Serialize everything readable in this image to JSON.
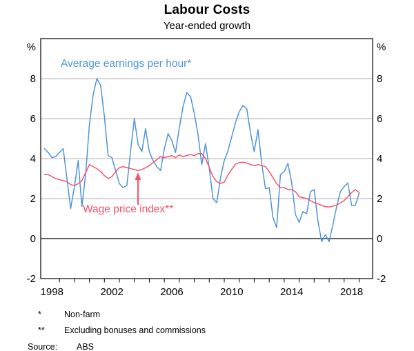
{
  "header": {
    "title": "Labour Costs",
    "subtitle": "Year-ended growth"
  },
  "annotations": {
    "blue_label": "Average earnings per hour*",
    "red_label": "Wage price index**"
  },
  "footnotes": [
    {
      "marker": "*",
      "text": "Non-farm"
    },
    {
      "marker": "**",
      "text": "Excluding bonuses and commissions"
    }
  ],
  "source": {
    "label": "Source:",
    "text": "ABS"
  },
  "colors": {
    "blue": "#4D93DA",
    "red": "#F3536A",
    "grid": "#ADADAD",
    "zero_line": "#000000",
    "frame": "#000000",
    "text": "#000000"
  },
  "axes": {
    "unit_label": "%",
    "y_ticks": [
      8,
      6,
      4,
      2,
      0,
      -2
    ],
    "ylim": [
      -2,
      10
    ],
    "x_tick_years": [
      1999,
      2000,
      2001,
      2002,
      2003,
      2004,
      2005,
      2006,
      2007,
      2008,
      2009,
      2010,
      2011,
      2012,
      2013,
      2014,
      2015,
      2016,
      2017,
      2018,
      2019
    ],
    "x_label_years": [
      1998,
      2002,
      2006,
      2010,
      2014,
      2018
    ],
    "xlim": [
      1997.75,
      2019.9
    ]
  },
  "chart_data": {
    "type": "line",
    "title": "Labour Costs",
    "subtitle": "Year-ended growth",
    "unit": "%",
    "ylim": [
      -2,
      10
    ],
    "grid": "horizontal-at-even-values",
    "legend_position": "inline-annotations",
    "frequency": "quarterly",
    "series": [
      {
        "name": "Average earnings per hour*",
        "color": "#4D93DA",
        "x_first": 1998.0,
        "x_step": 0.25,
        "values": [
          4.5,
          4.3,
          4.05,
          4.1,
          4.3,
          4.5,
          3.0,
          1.5,
          2.6,
          3.9,
          1.6,
          3.2,
          5.7,
          7.2,
          8.0,
          7.65,
          6.1,
          4.15,
          4.05,
          3.4,
          2.75,
          2.55,
          2.65,
          4.4,
          6.0,
          4.7,
          4.35,
          5.5,
          4.35,
          3.9,
          3.6,
          3.4,
          4.5,
          5.25,
          4.9,
          4.3,
          5.55,
          6.6,
          7.3,
          7.1,
          6.25,
          5.2,
          3.7,
          4.75,
          3.5,
          2.0,
          1.8,
          3.05,
          3.9,
          4.4,
          5.1,
          5.8,
          6.35,
          6.65,
          6.5,
          5.3,
          4.35,
          5.45,
          3.76,
          2.5,
          2.55,
          1.05,
          0.55,
          3.2,
          3.35,
          3.76,
          2.8,
          1.2,
          0.82,
          1.35,
          1.25,
          2.35,
          2.45,
          0.9,
          -0.15,
          0.2,
          -0.15,
          0.7,
          1.6,
          2.35,
          2.6,
          2.78,
          1.66,
          1.66,
          2.27
        ]
      },
      {
        "name": "Wage price index**",
        "color": "#F3536A",
        "x_first": 1998.0,
        "x_step": 0.25,
        "values": [
          3.2,
          3.2,
          3.1,
          3.0,
          2.95,
          2.9,
          2.85,
          2.7,
          2.65,
          2.75,
          2.9,
          3.3,
          3.7,
          3.6,
          3.5,
          3.35,
          3.15,
          3.0,
          3.1,
          3.35,
          3.55,
          3.6,
          3.55,
          3.5,
          3.45,
          3.4,
          3.45,
          3.55,
          3.65,
          3.8,
          3.95,
          4.1,
          4.05,
          4.1,
          4.15,
          4.05,
          4.18,
          4.1,
          4.15,
          4.2,
          4.15,
          4.25,
          4.25,
          4.0,
          3.55,
          3.1,
          2.85,
          2.76,
          2.82,
          3.18,
          3.47,
          3.72,
          3.8,
          3.82,
          3.78,
          3.7,
          3.65,
          3.7,
          3.65,
          3.6,
          3.35,
          3.05,
          2.75,
          2.55,
          2.55,
          2.45,
          2.45,
          2.35,
          2.1,
          2.05,
          2.0,
          1.9,
          1.8,
          1.75,
          1.65,
          1.6,
          1.58,
          1.62,
          1.68,
          1.78,
          1.9,
          2.1,
          2.3,
          2.45,
          2.3
        ]
      }
    ]
  }
}
